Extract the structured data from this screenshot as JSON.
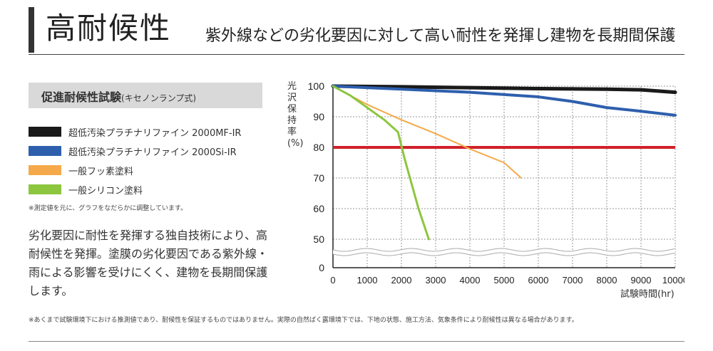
{
  "header": {
    "title": "高耐候性",
    "subtitle": "紫外線などの劣化要因に対して高い耐性を発揮し建物を長期間保護"
  },
  "panel": {
    "title": "促進耐候性試験",
    "title_small": "(キセノンランプ式)"
  },
  "legend": [
    {
      "label": "超低汚染プラチナリファイン 2000MF-IR",
      "color": "#1a1a1a"
    },
    {
      "label": "超低汚染プラチナリファイン 2000Si-IR",
      "color": "#2e5fad"
    },
    {
      "label": "一般フッ素塗料",
      "color": "#f5a94a"
    },
    {
      "label": "一般シリコン塗料",
      "color": "#8cc63f"
    }
  ],
  "note": "※測定値を元に、グラフをなだらかに調整しています。",
  "description": "劣化要因に耐性を発揮する独自技術により、高耐候性を発揮。塗膜の劣化要因である紫外線・雨による影響を受けにくく、建物を長期間保護します。",
  "footnote": "※あくまで試験環境下における推測値であり、耐候性を保証するものではありません。実際の自然ばく露環境下では、下地の状態、施工方法、気象条件により耐候性は異なる場合があります。",
  "chart_data": {
    "type": "line",
    "title": "",
    "ylabel": "光沢保持率(%)",
    "xlabel": "試験時間(hr)",
    "xlim": [
      0,
      10000
    ],
    "ylim": [
      0,
      100
    ],
    "y_axis_break": "0–50",
    "x_ticks": [
      "0",
      "1000",
      "2000",
      "3000",
      "4000",
      "5000",
      "6000",
      "7000",
      "8000",
      "9000",
      "10000"
    ],
    "y_ticks": [
      "0",
      "50",
      "60",
      "70",
      "80",
      "90",
      "100"
    ],
    "reference_line": {
      "y": 80,
      "color": "#d0202a"
    },
    "series": [
      {
        "name": "超低汚染プラチナリファイン 2000MF-IR",
        "color": "#1a1a1a",
        "x": [
          0,
          2000,
          4000,
          6000,
          8000,
          9000,
          10000
        ],
        "y": [
          100,
          99.8,
          99.5,
          99.2,
          99,
          98.8,
          98
        ]
      },
      {
        "name": "超低汚染プラチナリファイン 2000Si-IR",
        "color": "#2e5fad",
        "x": [
          0,
          2000,
          4000,
          6000,
          7000,
          8000,
          9000,
          10000
        ],
        "y": [
          100,
          99,
          98,
          96.5,
          95,
          93,
          91.8,
          90.5
        ]
      },
      {
        "name": "一般フッ素塗料",
        "color": "#f5a94a",
        "x": [
          0,
          1000,
          2000,
          3000,
          4000,
          5000,
          5500
        ],
        "y": [
          100,
          94,
          89,
          84.5,
          79.5,
          75,
          70
        ]
      },
      {
        "name": "一般シリコン塗料",
        "color": "#8cc63f",
        "x": [
          0,
          500,
          1000,
          1500,
          1900,
          2100,
          2500,
          2800
        ],
        "y": [
          100,
          97,
          93,
          89,
          85,
          76,
          60,
          50
        ]
      }
    ]
  }
}
